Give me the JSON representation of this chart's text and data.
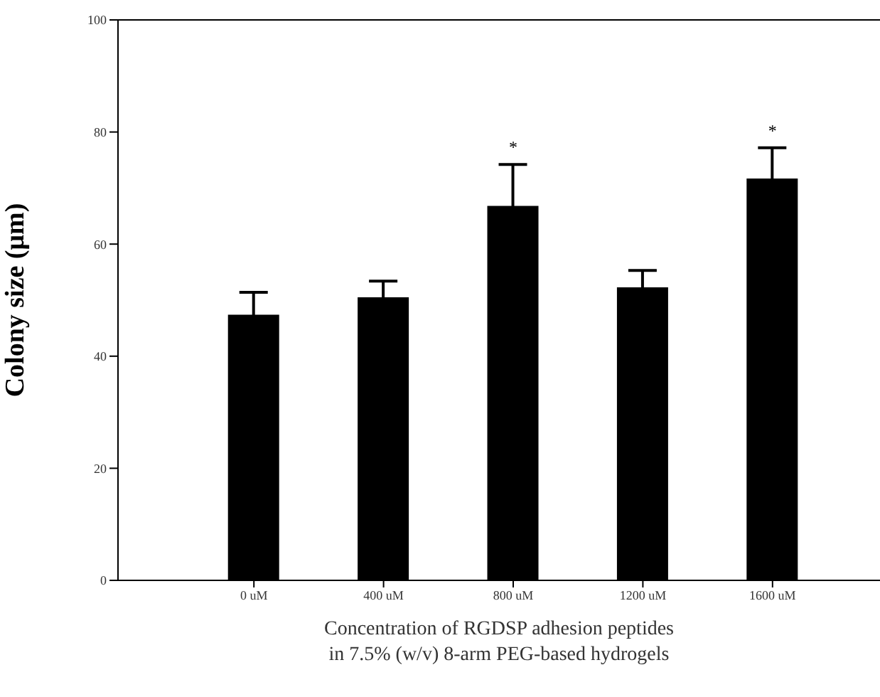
{
  "chart_data": {
    "type": "bar",
    "xlabel": "Concentration of RGDSP adhesion peptides\nin 7.5% (w/v) 8-arm PEG-based hydrogels",
    "ylabel": "Colony size (μm)",
    "categories": [
      "0 uM",
      "400 uM",
      "800 uM",
      "1200 uM",
      "1600 uM"
    ],
    "values": [
      47.4,
      50.5,
      66.8,
      52.3,
      71.7
    ],
    "errors": [
      4.0,
      2.9,
      7.4,
      3.0,
      5.5
    ],
    "color": "#000000",
    "ylim": [
      0,
      100
    ],
    "yticks": [
      0,
      20,
      40,
      60,
      80,
      100
    ],
    "value_labels": [
      null,
      null,
      "*",
      null,
      "*"
    ],
    "grid": false,
    "legend": false
  }
}
